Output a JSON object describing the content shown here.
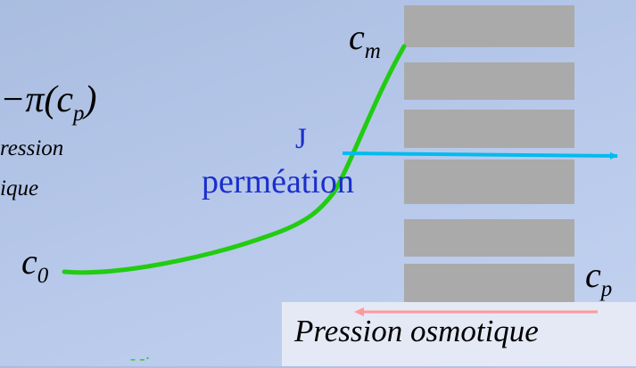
{
  "labels": {
    "c_m_main": "c",
    "c_m_sub": "m",
    "c_0_main": "c",
    "c_0_sub": "0",
    "c_p_main": "c",
    "c_p_sub": "p",
    "pi_expr": "−π(c",
    "pi_sub": "p",
    "pi_close": ")",
    "ression": "ression",
    "ique": "ique",
    "J": "J",
    "permeation": "perméation",
    "osmotic": "Pression osmotique",
    "bottom_fragment": "- -·"
  },
  "colors": {
    "curve": "#22cc11",
    "flux_arrow": "#00bbee",
    "osmotic_arrow": "#ff9999",
    "label_blue": "#1a2fcc",
    "blocks": "#aaaaaa"
  }
}
